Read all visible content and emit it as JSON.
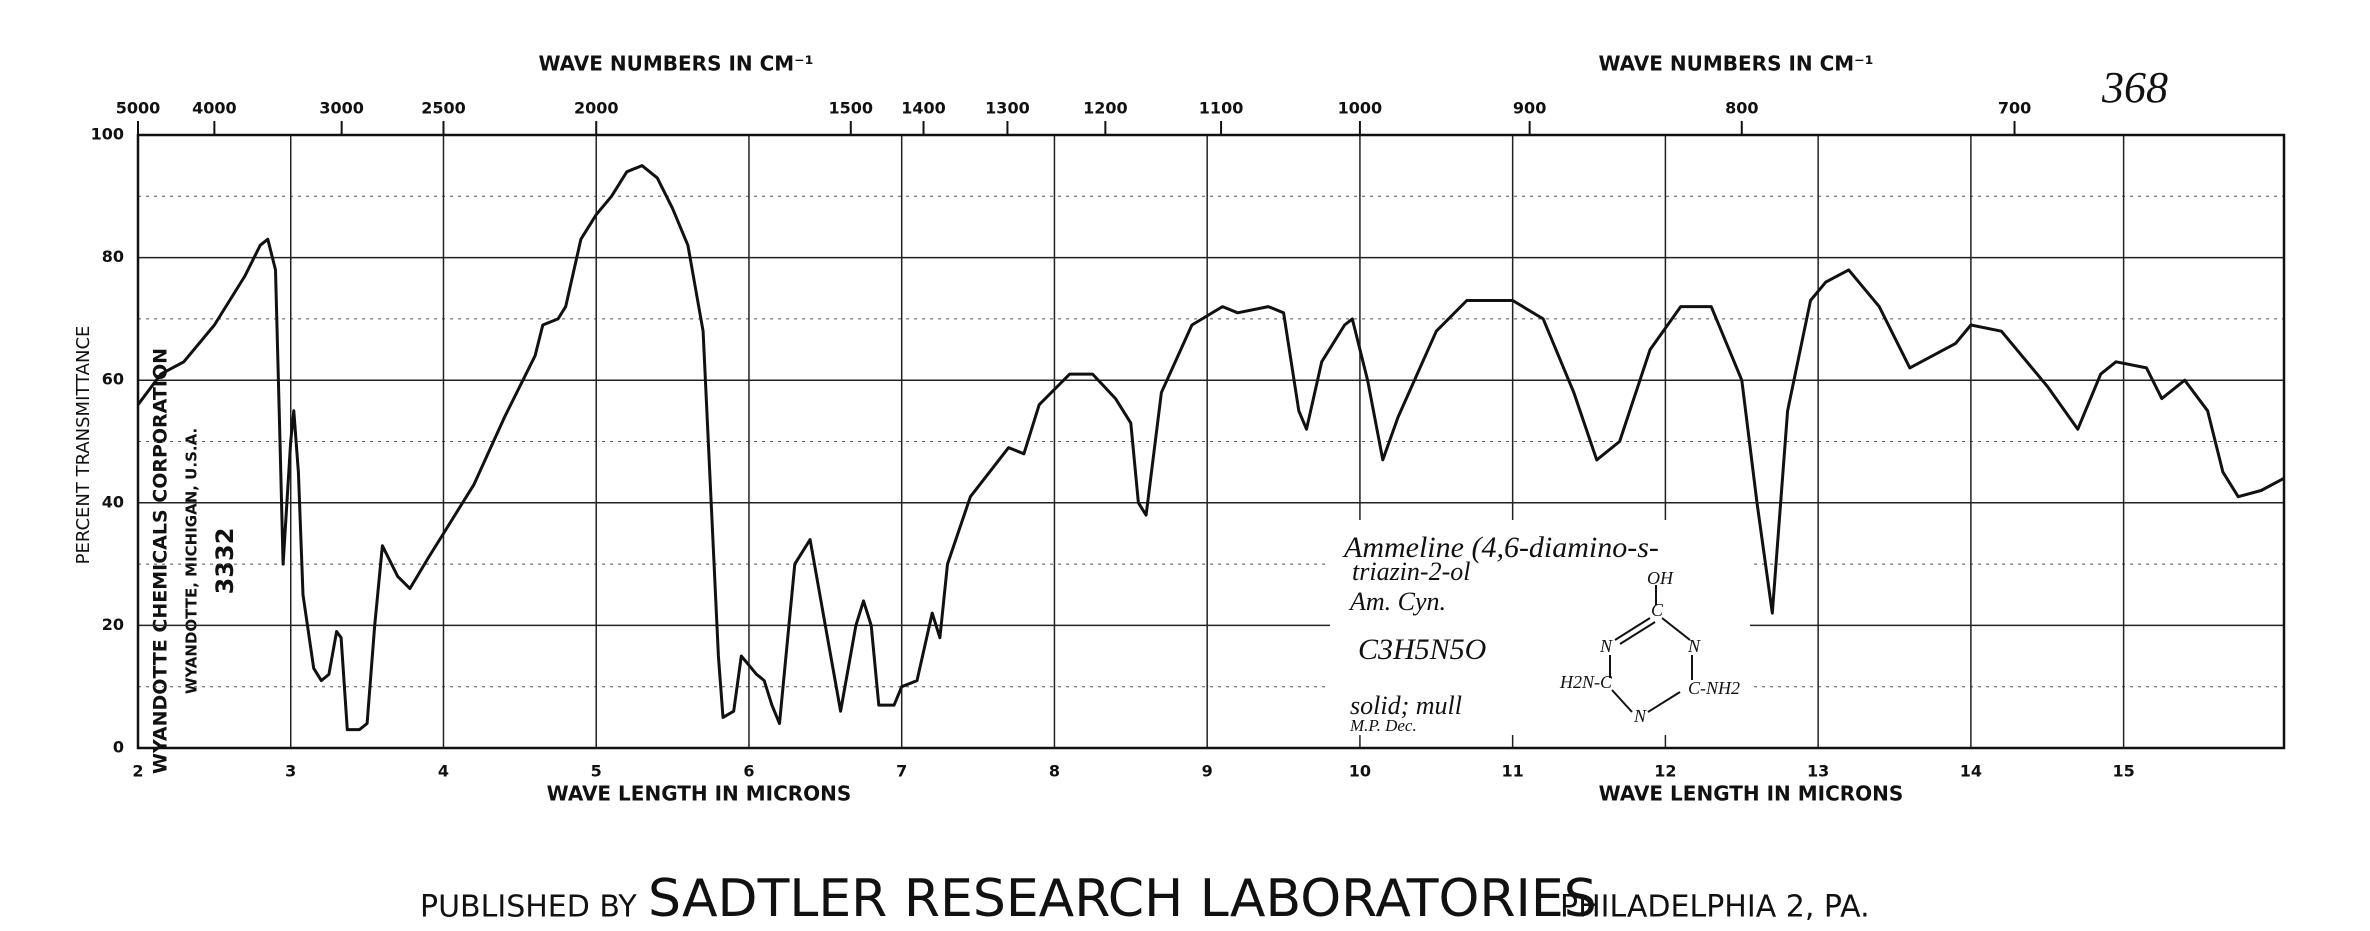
{
  "chart_data": {
    "type": "line",
    "spectrum_number": "368",
    "top_axis_titles": [
      "WAVE NUMBERS IN CM⁻¹",
      "WAVE NUMBERS IN CM⁻¹"
    ],
    "x_axis_titles": [
      "WAVE LENGTH IN MICRONS",
      "WAVE LENGTH IN MICRONS"
    ],
    "y_axis_title": "PERCENT TRANSMITTANCE",
    "xlim": [
      2,
      16.05
    ],
    "xticks": [
      2,
      3,
      4,
      5,
      6,
      7,
      8,
      9,
      10,
      11,
      12,
      13,
      14,
      15
    ],
    "ylim": [
      0,
      100
    ],
    "yticks": [
      0,
      20,
      40,
      60,
      80,
      100
    ],
    "minor_yticks": [
      10,
      30,
      50,
      70,
      90
    ],
    "top_ticks": [
      5000,
      4000,
      3000,
      2500,
      2000,
      1500,
      1400,
      1300,
      1200,
      1100,
      1000,
      900,
      800,
      700
    ],
    "grid": true,
    "x": [
      2.0,
      2.15,
      2.3,
      2.5,
      2.7,
      2.8,
      2.85,
      2.9,
      2.93,
      2.95,
      3.0,
      3.02,
      3.05,
      3.08,
      3.15,
      3.2,
      3.25,
      3.3,
      3.33,
      3.37,
      3.45,
      3.5,
      3.55,
      3.6,
      3.7,
      3.78,
      3.9,
      4.0,
      4.2,
      4.4,
      4.6,
      4.65,
      4.75,
      4.8,
      4.9,
      5.0,
      5.1,
      5.2,
      5.3,
      5.4,
      5.5,
      5.6,
      5.7,
      5.8,
      5.83,
      5.9,
      5.95,
      6.05,
      6.1,
      6.15,
      6.2,
      6.3,
      6.4,
      6.5,
      6.6,
      6.7,
      6.75,
      6.8,
      6.85,
      6.95,
      7.0,
      7.1,
      7.2,
      7.25,
      7.3,
      7.45,
      7.7,
      7.8,
      7.9,
      8.1,
      8.25,
      8.4,
      8.5,
      8.55,
      8.6,
      8.7,
      8.9,
      9.1,
      9.2,
      9.4,
      9.5,
      9.6,
      9.65,
      9.75,
      9.9,
      9.95,
      10.05,
      10.15,
      10.25,
      10.5,
      10.7,
      11.0,
      11.2,
      11.4,
      11.55,
      11.7,
      11.9,
      12.1,
      12.3,
      12.5,
      12.6,
      12.7,
      12.8,
      12.95,
      13.05,
      13.2,
      13.4,
      13.6,
      13.75,
      13.9,
      14.0,
      14.2,
      14.5,
      14.7,
      14.85,
      14.95,
      15.15,
      15.25,
      15.4,
      15.55,
      15.65,
      15.75,
      15.9,
      16.05
    ],
    "series": [
      {
        "name": "Ammeline",
        "color": "#111111",
        "values": [
          56,
          61,
          63,
          69,
          77,
          82,
          83,
          78,
          50,
          30,
          50,
          55,
          45,
          25,
          13,
          11,
          12,
          19,
          18,
          3,
          3,
          4,
          20,
          33,
          28,
          26,
          31,
          35,
          43,
          54,
          64,
          69,
          70,
          72,
          83,
          87,
          90,
          94,
          95,
          93,
          88,
          82,
          68,
          15,
          5,
          6,
          15,
          12,
          11,
          7,
          4,
          30,
          34,
          20,
          6,
          20,
          24,
          20,
          7,
          7,
          10,
          11,
          22,
          18,
          30,
          41,
          49,
          48,
          56,
          61,
          61,
          57,
          53,
          40,
          38,
          58,
          69,
          72,
          71,
          72,
          71,
          55,
          52,
          63,
          69,
          70,
          60,
          47,
          54,
          68,
          73,
          73,
          70,
          58,
          47,
          50,
          65,
          72,
          72,
          60,
          40,
          22,
          55,
          73,
          76,
          78,
          72,
          62,
          64,
          66,
          69,
          68,
          59,
          52,
          61,
          63,
          62,
          57,
          60,
          55,
          45,
          41,
          42,
          44
        ]
      }
    ],
    "stamp": [
      "WYANDOTTE CHEMICALS CORPORATION",
      "WYANDOTTE, MICHIGAN, U.S.A.",
      "3332"
    ],
    "annotation": {
      "lines": [
        "Ammeline (4,6-diamino-s-",
        "triazin-2-ol",
        "Am. Cyn.",
        "C3H5N5O",
        "solid; mull",
        "M.P. Dec."
      ],
      "structure": [
        "OH",
        "C",
        "N",
        "N",
        "H2N-C",
        "C-NH2",
        "N"
      ]
    },
    "footer": [
      "PUBLISHED BY",
      "SADTLER RESEARCH LABORATORIES",
      "PHILADELPHIA 2, PA."
    ]
  }
}
